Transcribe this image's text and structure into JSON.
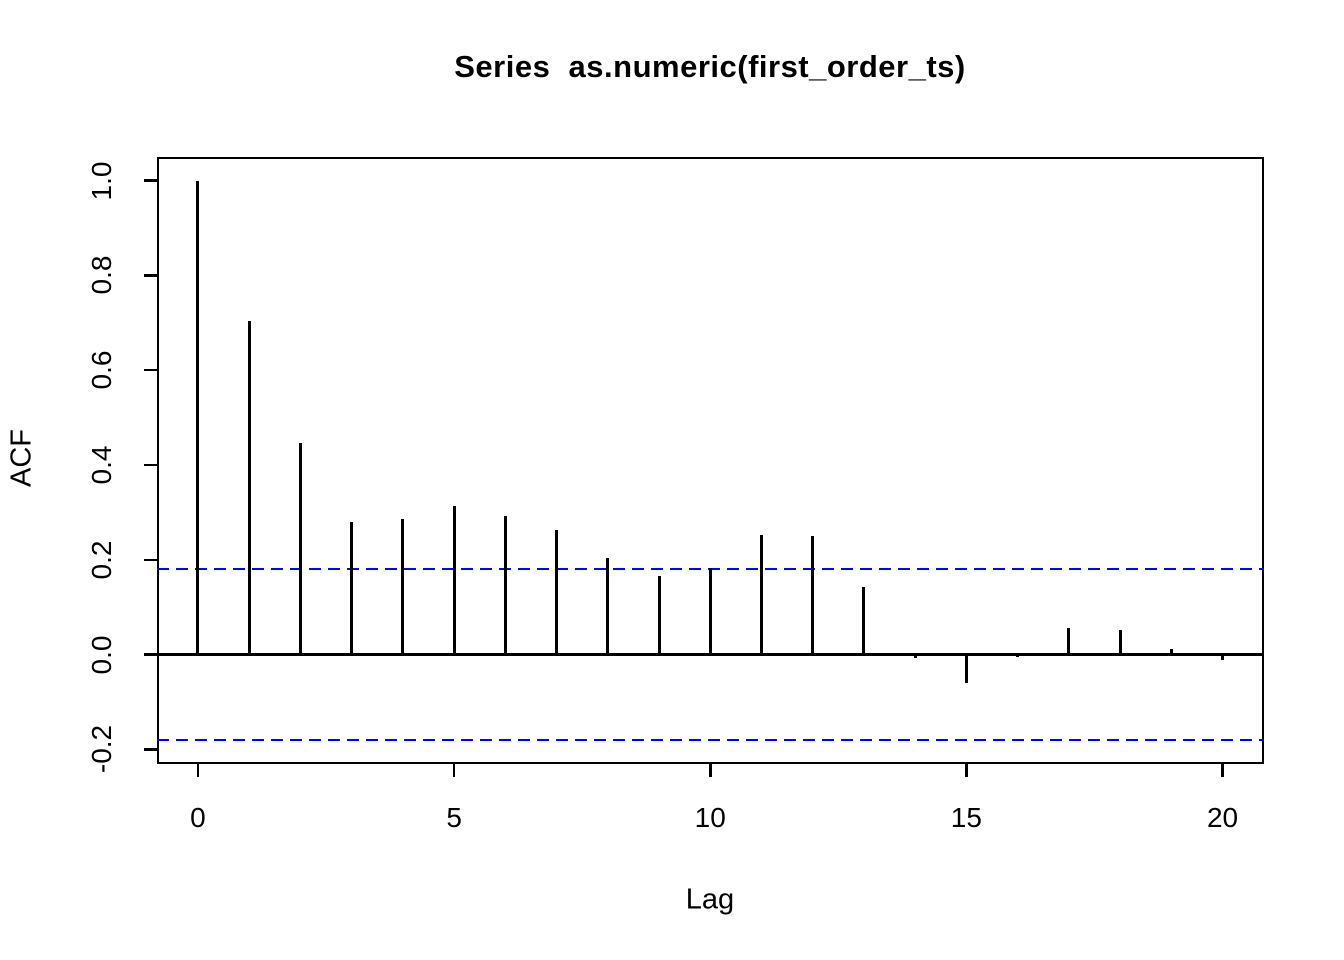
{
  "chart_data": {
    "type": "bar",
    "subtype": "acf-stem-plot",
    "title": "Series  as.numeric(first_order_ts)",
    "xlabel": "Lag",
    "ylabel": "ACF",
    "x": [
      0,
      1,
      2,
      3,
      4,
      5,
      6,
      7,
      8,
      9,
      10,
      11,
      12,
      13,
      14,
      15,
      16,
      17,
      18,
      19,
      20
    ],
    "values": [
      1.0,
      0.703,
      0.447,
      0.279,
      0.287,
      0.313,
      0.292,
      0.263,
      0.204,
      0.166,
      0.183,
      0.252,
      0.25,
      0.142,
      -0.007,
      -0.06,
      -0.005,
      0.056,
      0.051,
      0.011,
      -0.012
    ],
    "confidence_bounds": {
      "upper": 0.18,
      "lower": -0.18
    },
    "xticks": [
      0,
      5,
      10,
      15,
      20
    ],
    "xtick_labels": [
      "0",
      "5",
      "10",
      "15",
      "20"
    ],
    "yticks": [
      1.0,
      0.8,
      0.6,
      0.4,
      0.2,
      0.0,
      -0.2
    ],
    "ytick_labels": [
      "1.0",
      "0.8",
      "0.6",
      "0.4",
      "0.2",
      "0.0",
      "-0.2"
    ],
    "xlim": [
      -0.8,
      20.8
    ],
    "ylim": [
      -0.23,
      1.05
    ],
    "grid": false,
    "legend": null,
    "colors": {
      "bar": "#000000",
      "confidence_line": "#0000ff",
      "axis": "#000000",
      "text": "#000000",
      "background": "#ffffff"
    }
  }
}
